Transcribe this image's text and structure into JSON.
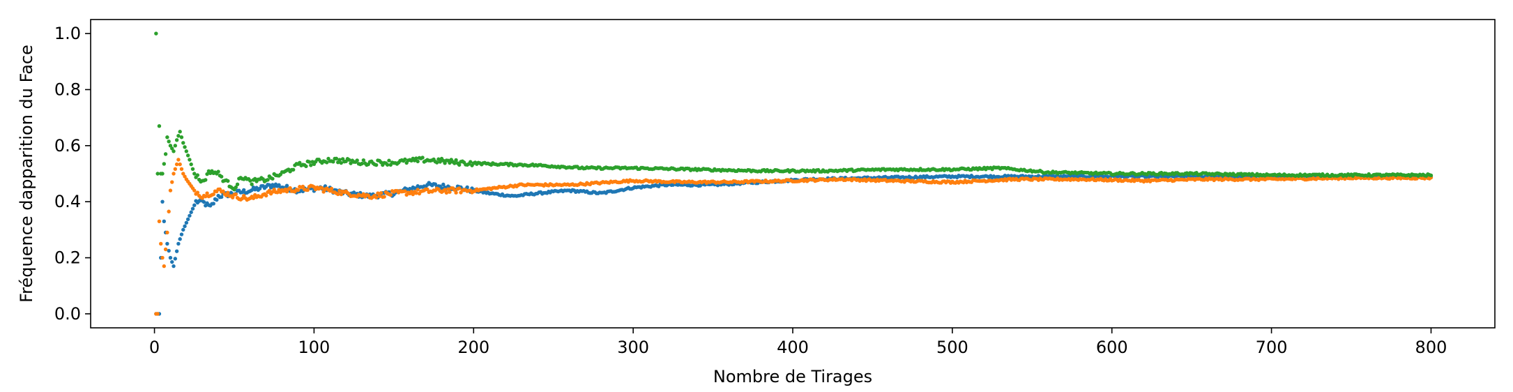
{
  "chart_data": {
    "type": "scatter",
    "title": "",
    "xlabel": "Nombre de Tirages",
    "ylabel": "Fréquence dapparition du Face",
    "xlim": [
      -40,
      840
    ],
    "ylim": [
      -0.05,
      1.05
    ],
    "xticks": [
      0,
      100,
      200,
      300,
      400,
      500,
      600,
      700,
      800
    ],
    "xtick_labels": [
      "0",
      "100",
      "200",
      "300",
      "400",
      "500",
      "600",
      "700",
      "800"
    ],
    "yticks": [
      0.0,
      0.2,
      0.4,
      0.6,
      0.8,
      1.0
    ],
    "ytick_labels": [
      "0.0",
      "0.2",
      "0.4",
      "0.6",
      "0.8",
      "1.0"
    ],
    "grid": false,
    "legend": "none",
    "n_points": 800,
    "series": [
      {
        "color": "#1f77b4",
        "keypoints": [
          [
            1,
            0
          ],
          [
            2,
            0
          ],
          [
            3,
            0
          ],
          [
            5,
            0.4
          ],
          [
            6,
            0.33
          ],
          [
            8,
            0.25
          ],
          [
            10,
            0.2
          ],
          [
            12,
            0.17
          ],
          [
            15,
            0.25
          ],
          [
            18,
            0.3
          ],
          [
            22,
            0.35
          ],
          [
            26,
            0.4
          ],
          [
            30,
            0.4
          ],
          [
            35,
            0.38
          ],
          [
            40,
            0.42
          ],
          [
            50,
            0.43
          ],
          [
            60,
            0.44
          ],
          [
            75,
            0.46
          ],
          [
            90,
            0.44
          ],
          [
            105,
            0.45
          ],
          [
            120,
            0.43
          ],
          [
            135,
            0.42
          ],
          [
            150,
            0.43
          ],
          [
            170,
            0.46
          ],
          [
            190,
            0.45
          ],
          [
            210,
            0.43
          ],
          [
            225,
            0.42
          ],
          [
            240,
            0.43
          ],
          [
            260,
            0.44
          ],
          [
            280,
            0.43
          ],
          [
            300,
            0.45
          ],
          [
            320,
            0.46
          ],
          [
            350,
            0.46
          ],
          [
            380,
            0.47
          ],
          [
            410,
            0.48
          ],
          [
            450,
            0.485
          ],
          [
            500,
            0.49
          ],
          [
            550,
            0.49
          ],
          [
            600,
            0.49
          ],
          [
            650,
            0.49
          ],
          [
            700,
            0.49
          ],
          [
            750,
            0.49
          ],
          [
            800,
            0.49
          ]
        ]
      },
      {
        "color": "#ff7f0e",
        "keypoints": [
          [
            1,
            0
          ],
          [
            2,
            0
          ],
          [
            3,
            0.33
          ],
          [
            4,
            0.25
          ],
          [
            5,
            0.2
          ],
          [
            6,
            0.17
          ],
          [
            8,
            0.29
          ],
          [
            10,
            0.44
          ],
          [
            12,
            0.5
          ],
          [
            15,
            0.55
          ],
          [
            18,
            0.5
          ],
          [
            20,
            0.48
          ],
          [
            25,
            0.44
          ],
          [
            30,
            0.42
          ],
          [
            40,
            0.44
          ],
          [
            50,
            0.42
          ],
          [
            60,
            0.41
          ],
          [
            70,
            0.43
          ],
          [
            80,
            0.44
          ],
          [
            100,
            0.45
          ],
          [
            120,
            0.43
          ],
          [
            135,
            0.42
          ],
          [
            150,
            0.43
          ],
          [
            180,
            0.44
          ],
          [
            200,
            0.44
          ],
          [
            230,
            0.46
          ],
          [
            260,
            0.46
          ],
          [
            300,
            0.475
          ],
          [
            330,
            0.47
          ],
          [
            360,
            0.47
          ],
          [
            400,
            0.475
          ],
          [
            430,
            0.48
          ],
          [
            460,
            0.475
          ],
          [
            500,
            0.47
          ],
          [
            540,
            0.48
          ],
          [
            580,
            0.48
          ],
          [
            620,
            0.475
          ],
          [
            660,
            0.48
          ],
          [
            700,
            0.48
          ],
          [
            750,
            0.485
          ],
          [
            800,
            0.485
          ]
        ]
      },
      {
        "color": "#2ca02c",
        "keypoints": [
          [
            1,
            1
          ],
          [
            2,
            0.5
          ],
          [
            3,
            0.67
          ],
          [
            4,
            0.5
          ],
          [
            5,
            0.5
          ],
          [
            7,
            0.57
          ],
          [
            8,
            0.63
          ],
          [
            10,
            0.6
          ],
          [
            12,
            0.58
          ],
          [
            14,
            0.62
          ],
          [
            16,
            0.65
          ],
          [
            18,
            0.61
          ],
          [
            20,
            0.58
          ],
          [
            22,
            0.55
          ],
          [
            25,
            0.5
          ],
          [
            30,
            0.47
          ],
          [
            35,
            0.51
          ],
          [
            40,
            0.5
          ],
          [
            45,
            0.47
          ],
          [
            50,
            0.45
          ],
          [
            55,
            0.49
          ],
          [
            60,
            0.47
          ],
          [
            70,
            0.48
          ],
          [
            80,
            0.5
          ],
          [
            90,
            0.53
          ],
          [
            100,
            0.54
          ],
          [
            110,
            0.55
          ],
          [
            130,
            0.54
          ],
          [
            150,
            0.54
          ],
          [
            170,
            0.55
          ],
          [
            190,
            0.54
          ],
          [
            210,
            0.535
          ],
          [
            240,
            0.53
          ],
          [
            270,
            0.52
          ],
          [
            300,
            0.52
          ],
          [
            340,
            0.515
          ],
          [
            380,
            0.51
          ],
          [
            420,
            0.51
          ],
          [
            460,
            0.515
          ],
          [
            500,
            0.515
          ],
          [
            530,
            0.52
          ],
          [
            560,
            0.505
          ],
          [
            600,
            0.5
          ],
          [
            650,
            0.5
          ],
          [
            700,
            0.495
          ],
          [
            750,
            0.495
          ],
          [
            800,
            0.495
          ]
        ]
      }
    ]
  }
}
